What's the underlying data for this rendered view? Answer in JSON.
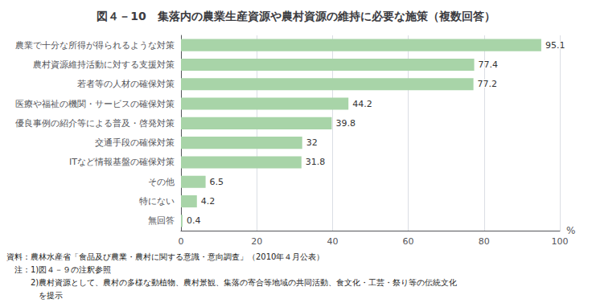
{
  "chart_data": {
    "type": "bar",
    "orientation": "horizontal",
    "title": "図４－10　集落内の農業生産資源や農村資源の維持に必要な施策（複数回答）",
    "categories": [
      "農業で十分な所得が得られるような対策",
      "農村資源維持活動に対する支援対策",
      "若者等の人材の確保対策",
      "医療や福祉の機関・サービスの確保対策",
      "優良事例の紹介等による普及・啓発対策",
      "交通手段の確保対策",
      "ITなど情報基盤の確保対策",
      "その他",
      "特にない",
      "無回答"
    ],
    "values": [
      95.1,
      77.4,
      77.2,
      44.2,
      39.8,
      32.0,
      31.8,
      6.5,
      4.2,
      0.4
    ],
    "color": "#a8d4a8",
    "xlabel": "%",
    "xlim": [
      0,
      100
    ],
    "xticks": [
      0,
      20,
      40,
      60,
      80,
      100
    ],
    "grid": true,
    "data_labels": true,
    "annotations": [
      "資料：農林水産省「食品及び農業・農村に関する意識・意向調査」（2010年４月公表）",
      "　注：1)図４－９の注釈参照",
      "　　　2)農村資源として、農村の多様な動植物、農村景観、集落の寄合等地域の共同活動、食文化・工芸・祭り等の伝統文化",
      "　　　　を提示"
    ]
  }
}
